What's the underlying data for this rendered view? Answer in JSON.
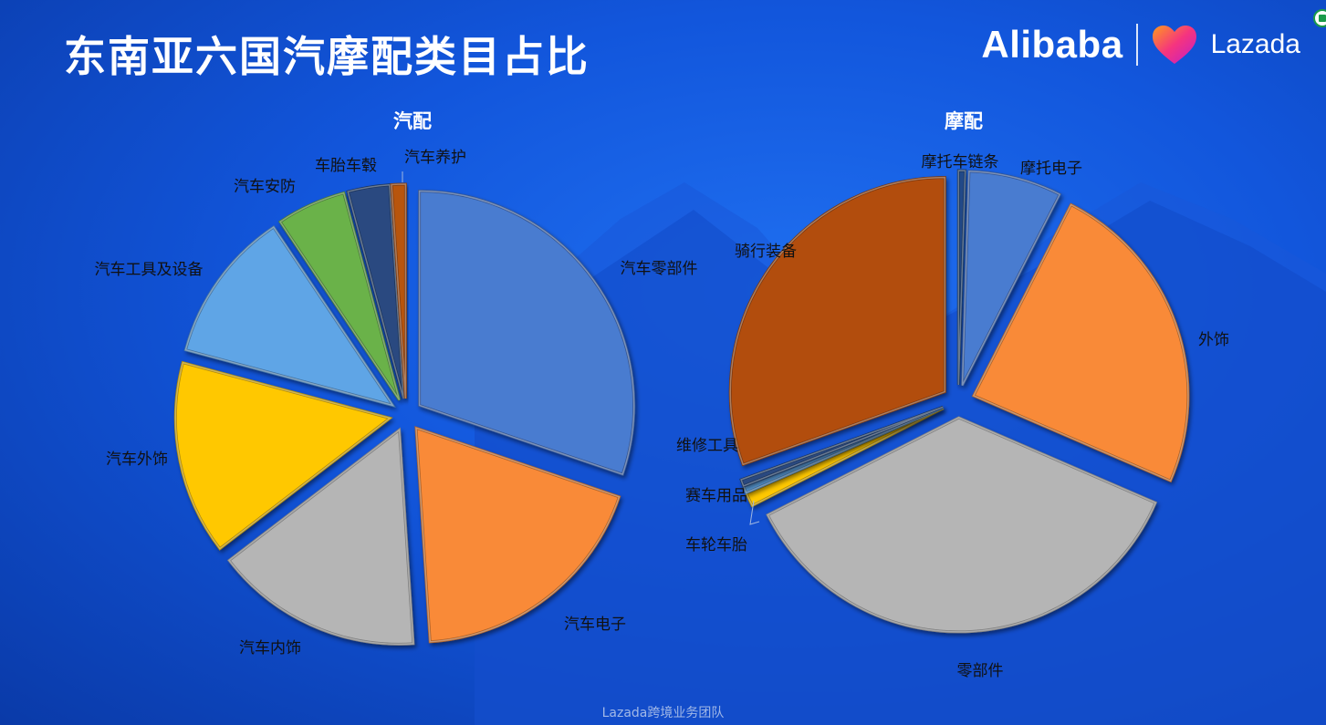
{
  "page": {
    "title": "东南亚六国汽摩配类目占比",
    "logo_alibaba": "Alibaba",
    "logo_lazada": "Lazada",
    "footer": "Lazada跨境业务团队"
  },
  "chart_data": [
    {
      "type": "pie",
      "title": "汽配",
      "exploded": true,
      "categories": [
        "汽车零部件",
        "汽车电子",
        "汽车内饰",
        "汽车外饰",
        "汽车工具及设备",
        "汽车安防",
        "车胎车毂",
        "汽车养护"
      ],
      "values": [
        29,
        18,
        15,
        14,
        11,
        5,
        3,
        1
      ],
      "colors": [
        "#4a7bd0",
        "#f98a38",
        "#b5b5b5",
        "#ffc800",
        "#5fa5e6",
        "#6ab24a",
        "#2c4a80",
        "#b85510"
      ]
    },
    {
      "type": "pie",
      "title": "摩配",
      "exploded": true,
      "categories": [
        "摩托车链条",
        "摩托电子",
        "外饰",
        "零部件",
        "车轮车胎",
        "赛车用品",
        "维修工具",
        "骑行装备"
      ],
      "values": [
        0.5,
        7,
        24,
        36,
        1,
        0.5,
        0.5,
        30.5
      ],
      "colors": [
        "#234a88",
        "#4a7bd0",
        "#f98a38",
        "#b5b5b5",
        "#ffc800",
        "#5fa5e6",
        "#2c4a80",
        "#b24e0f"
      ]
    }
  ]
}
